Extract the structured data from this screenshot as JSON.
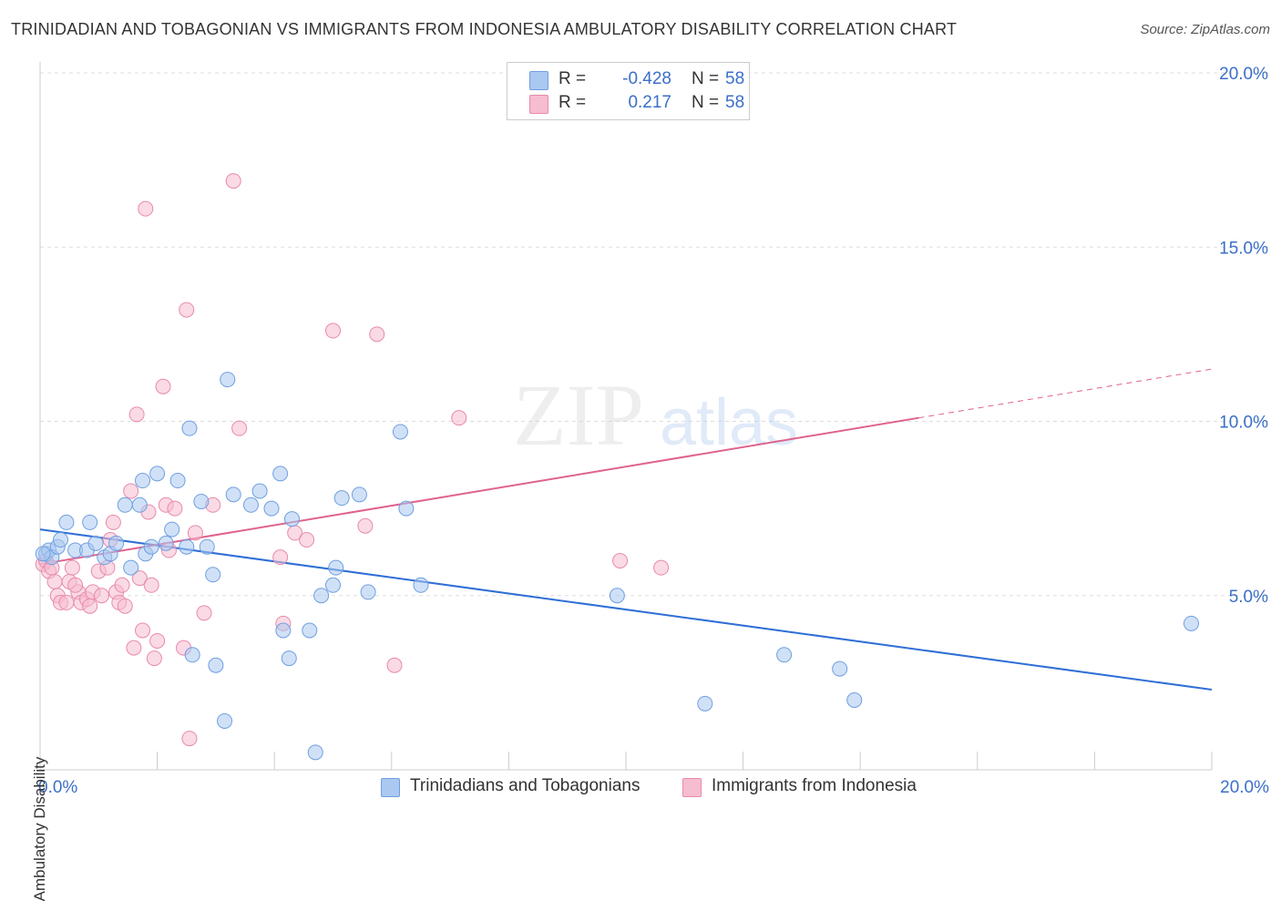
{
  "title": "TRINIDADIAN AND TOBAGONIAN VS IMMIGRANTS FROM INDONESIA AMBULATORY DISABILITY CORRELATION CHART",
  "source": "Source: ZipAtlas.com",
  "watermark": {
    "zip": "ZIP",
    "atlas": "atlas"
  },
  "legend": {
    "series1": {
      "r_label": "R =",
      "r_value": "-0.428",
      "n_label": "N =",
      "n_value": "58"
    },
    "series2": {
      "r_label": "R =",
      "r_value": "0.217",
      "n_label": "N =",
      "n_value": "58"
    }
  },
  "bottom_legend": {
    "series1": "Trinidadians and Tobagonians",
    "series2": "Immigrants from Indonesia"
  },
  "colors": {
    "blue_fill": "#aac8f0",
    "blue_stroke": "#6f9fe0",
    "blue_line": "#2f6fd6",
    "pink_fill": "#f6bcd0",
    "pink_stroke": "#e98aab",
    "pink_line": "#e0628d",
    "tick_text": "#3b6fc9"
  },
  "chart_data": {
    "type": "scatter",
    "title": "TRINIDADIAN AND TOBAGONIAN VS IMMIGRANTS FROM INDONESIA AMBULATORY DISABILITY CORRELATION CHART",
    "xlabel": "",
    "ylabel": "Ambulatory Disability",
    "xlim": [
      0,
      20
    ],
    "ylim": [
      0,
      20
    ],
    "x_tick_labels": [
      "0.0%",
      "20.0%"
    ],
    "y_ticks": [
      5,
      10,
      15,
      20
    ],
    "y_tick_labels": [
      "5.0%",
      "10.0%",
      "15.0%",
      "20.0%"
    ],
    "grid": true,
    "legend_position": "top-center",
    "series": [
      {
        "name": "Trinidadians and Tobagonians",
        "r": -0.428,
        "n": 58,
        "trend": {
          "x": [
            0,
            20
          ],
          "y": [
            6.9,
            2.3
          ]
        },
        "points": [
          [
            0.1,
            6.2
          ],
          [
            0.15,
            6.3
          ],
          [
            0.2,
            6.1
          ],
          [
            0.3,
            6.4
          ],
          [
            0.35,
            6.6
          ],
          [
            0.45,
            7.1
          ],
          [
            0.6,
            6.3
          ],
          [
            0.8,
            6.3
          ],
          [
            0.85,
            7.1
          ],
          [
            0.95,
            6.5
          ],
          [
            1.1,
            6.1
          ],
          [
            1.2,
            6.2
          ],
          [
            1.3,
            6.5
          ],
          [
            1.45,
            7.6
          ],
          [
            1.55,
            5.8
          ],
          [
            1.7,
            7.6
          ],
          [
            1.75,
            8.3
          ],
          [
            1.8,
            6.2
          ],
          [
            1.9,
            6.4
          ],
          [
            2.0,
            8.5
          ],
          [
            2.15,
            6.5
          ],
          [
            2.25,
            6.9
          ],
          [
            2.35,
            8.3
          ],
          [
            2.5,
            6.4
          ],
          [
            2.55,
            9.8
          ],
          [
            2.6,
            3.3
          ],
          [
            2.75,
            7.7
          ],
          [
            2.85,
            6.4
          ],
          [
            2.95,
            5.6
          ],
          [
            3.0,
            3.0
          ],
          [
            3.15,
            1.4
          ],
          [
            3.2,
            11.2
          ],
          [
            3.3,
            7.9
          ],
          [
            3.6,
            7.6
          ],
          [
            3.75,
            8.0
          ],
          [
            3.95,
            7.5
          ],
          [
            4.1,
            8.5
          ],
          [
            4.15,
            4.0
          ],
          [
            4.25,
            3.2
          ],
          [
            4.3,
            7.2
          ],
          [
            4.6,
            4.0
          ],
          [
            4.7,
            0.5
          ],
          [
            4.8,
            5.0
          ],
          [
            5.0,
            5.3
          ],
          [
            5.05,
            5.8
          ],
          [
            5.15,
            7.8
          ],
          [
            5.45,
            7.9
          ],
          [
            5.6,
            5.1
          ],
          [
            6.15,
            9.7
          ],
          [
            6.25,
            7.5
          ],
          [
            6.5,
            5.3
          ],
          [
            9.85,
            5.0
          ],
          [
            11.35,
            1.9
          ],
          [
            12.7,
            3.3
          ],
          [
            13.65,
            2.9
          ],
          [
            13.9,
            2.0
          ],
          [
            19.65,
            4.2
          ],
          [
            0.05,
            6.2
          ]
        ]
      },
      {
        "name": "Immigrants from Indonesia",
        "r": 0.217,
        "n": 58,
        "trend": {
          "x": [
            0,
            15
          ],
          "y": [
            5.9,
            10.1
          ]
        },
        "trend_dashed": {
          "x": [
            15,
            20
          ],
          "y": [
            10.1,
            11.5
          ]
        },
        "points": [
          [
            0.05,
            5.9
          ],
          [
            0.1,
            6.0
          ],
          [
            0.15,
            5.7
          ],
          [
            0.2,
            5.8
          ],
          [
            0.25,
            5.4
          ],
          [
            0.3,
            5.0
          ],
          [
            0.35,
            4.8
          ],
          [
            0.45,
            4.8
          ],
          [
            0.5,
            5.4
          ],
          [
            0.55,
            5.8
          ],
          [
            0.65,
            5.1
          ],
          [
            0.7,
            4.8
          ],
          [
            0.8,
            4.9
          ],
          [
            0.85,
            4.7
          ],
          [
            0.9,
            5.1
          ],
          [
            1.0,
            5.7
          ],
          [
            1.05,
            5.0
          ],
          [
            1.15,
            5.8
          ],
          [
            1.2,
            6.6
          ],
          [
            1.25,
            7.1
          ],
          [
            1.3,
            5.1
          ],
          [
            1.35,
            4.8
          ],
          [
            1.4,
            5.3
          ],
          [
            1.45,
            4.7
          ],
          [
            1.55,
            8.0
          ],
          [
            1.6,
            3.5
          ],
          [
            1.65,
            10.2
          ],
          [
            1.7,
            5.5
          ],
          [
            1.75,
            4.0
          ],
          [
            1.8,
            16.1
          ],
          [
            1.85,
            7.4
          ],
          [
            1.9,
            5.3
          ],
          [
            1.95,
            3.2
          ],
          [
            2.0,
            3.7
          ],
          [
            2.1,
            11.0
          ],
          [
            2.15,
            7.6
          ],
          [
            2.2,
            6.3
          ],
          [
            2.3,
            7.5
          ],
          [
            2.45,
            3.5
          ],
          [
            2.5,
            13.2
          ],
          [
            2.55,
            0.9
          ],
          [
            2.65,
            6.8
          ],
          [
            2.8,
            4.5
          ],
          [
            2.95,
            7.6
          ],
          [
            3.3,
            16.9
          ],
          [
            3.4,
            9.8
          ],
          [
            4.1,
            6.1
          ],
          [
            4.15,
            4.2
          ],
          [
            4.35,
            6.8
          ],
          [
            4.55,
            6.6
          ],
          [
            5.0,
            12.6
          ],
          [
            5.55,
            7.0
          ],
          [
            5.75,
            12.5
          ],
          [
            6.05,
            3.0
          ],
          [
            7.15,
            10.1
          ],
          [
            9.9,
            6.0
          ],
          [
            10.6,
            5.8
          ],
          [
            0.6,
            5.3
          ]
        ]
      }
    ]
  }
}
